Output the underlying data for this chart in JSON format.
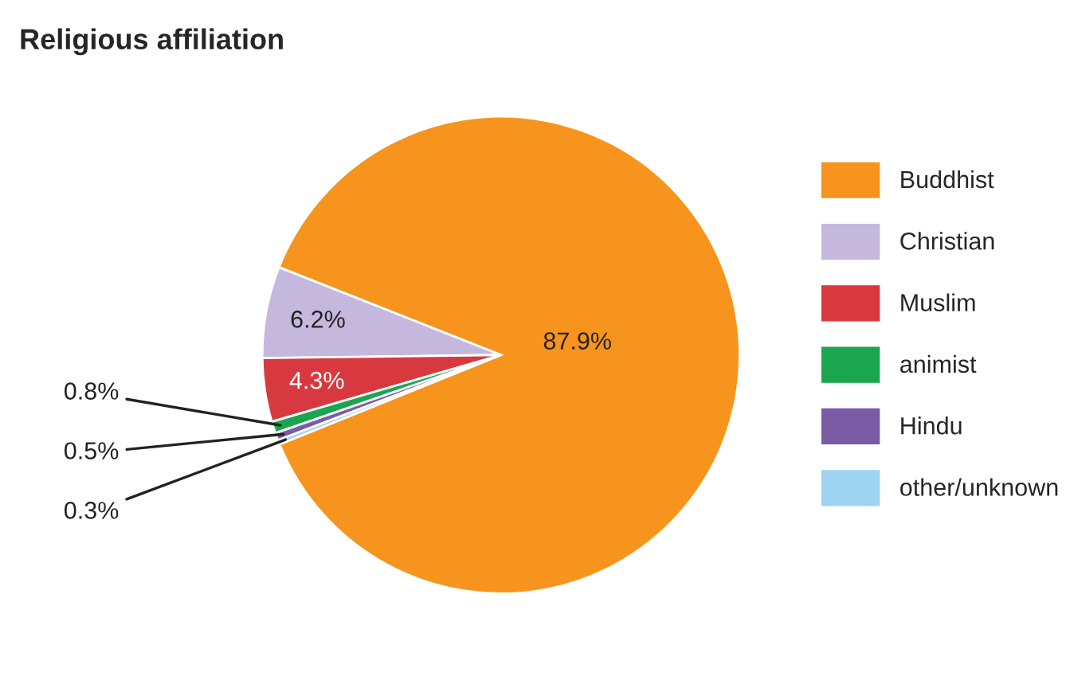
{
  "chart_data": {
    "type": "pie",
    "title": "Religious affiliation",
    "categories": [
      "Buddhist",
      "Christian",
      "Muslim",
      "animist",
      "Hindu",
      "other/unknown"
    ],
    "values": [
      87.9,
      6.2,
      4.3,
      0.8,
      0.5,
      0.3
    ],
    "colors": [
      "#f7941d",
      "#c5b8dd",
      "#d8393f",
      "#1aa64f",
      "#7a5ba6",
      "#9ed4f2"
    ],
    "value_labels": [
      "87.9%",
      "6.2%",
      "4.3%",
      "0.8%",
      "0.5%",
      "0.3%"
    ],
    "legend": "right"
  }
}
